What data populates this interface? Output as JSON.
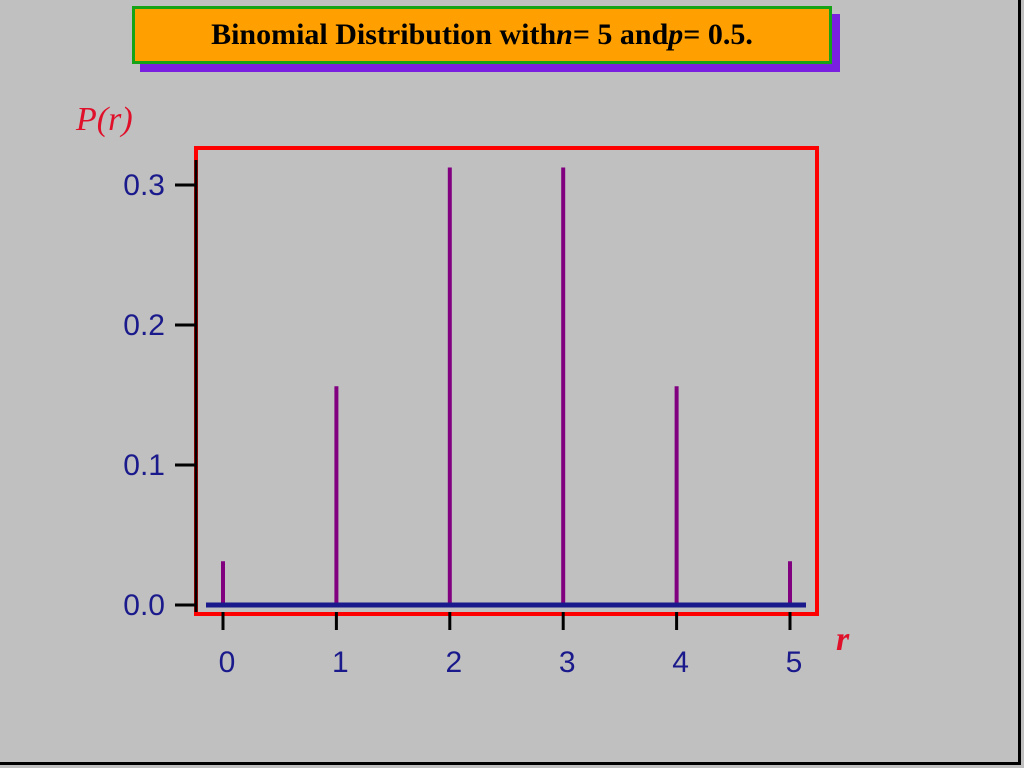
{
  "title": {
    "prefix": "Binomial Distribution with ",
    "n_var": "n",
    "n_eq": " = 5 and ",
    "p_var": "p",
    "p_eq": " = 0.5."
  },
  "colors": {
    "background": "#c0c0c0",
    "title_fill": "#ffa000",
    "title_border": "#16a316",
    "title_shadow": "#7a1fe0",
    "axis_label": "#e0102a",
    "tick_label": "#1a1a8c",
    "baseline": "#1a1a8c",
    "bars": "#800080",
    "plot_border": "#ff0000"
  },
  "chart_data": {
    "type": "bar",
    "title": "Binomial Distribution with n = 5 and p = 0.5.",
    "ylabel": "P(r)",
    "xlabel": "r",
    "categories": [
      "0",
      "1",
      "2",
      "3",
      "4",
      "5"
    ],
    "x": [
      0,
      1,
      2,
      3,
      4,
      5
    ],
    "values": [
      0.03125,
      0.15625,
      0.3125,
      0.3125,
      0.15625,
      0.03125
    ],
    "yticks": [
      "0.0",
      "0.1",
      "0.2",
      "0.3"
    ],
    "ytick_values": [
      0,
      0.1,
      0.2,
      0.3
    ],
    "xticks": [
      "0",
      "1",
      "2",
      "3",
      "4",
      "5"
    ],
    "ylim": [
      0,
      0.3
    ],
    "grid": false,
    "legend": "none"
  }
}
